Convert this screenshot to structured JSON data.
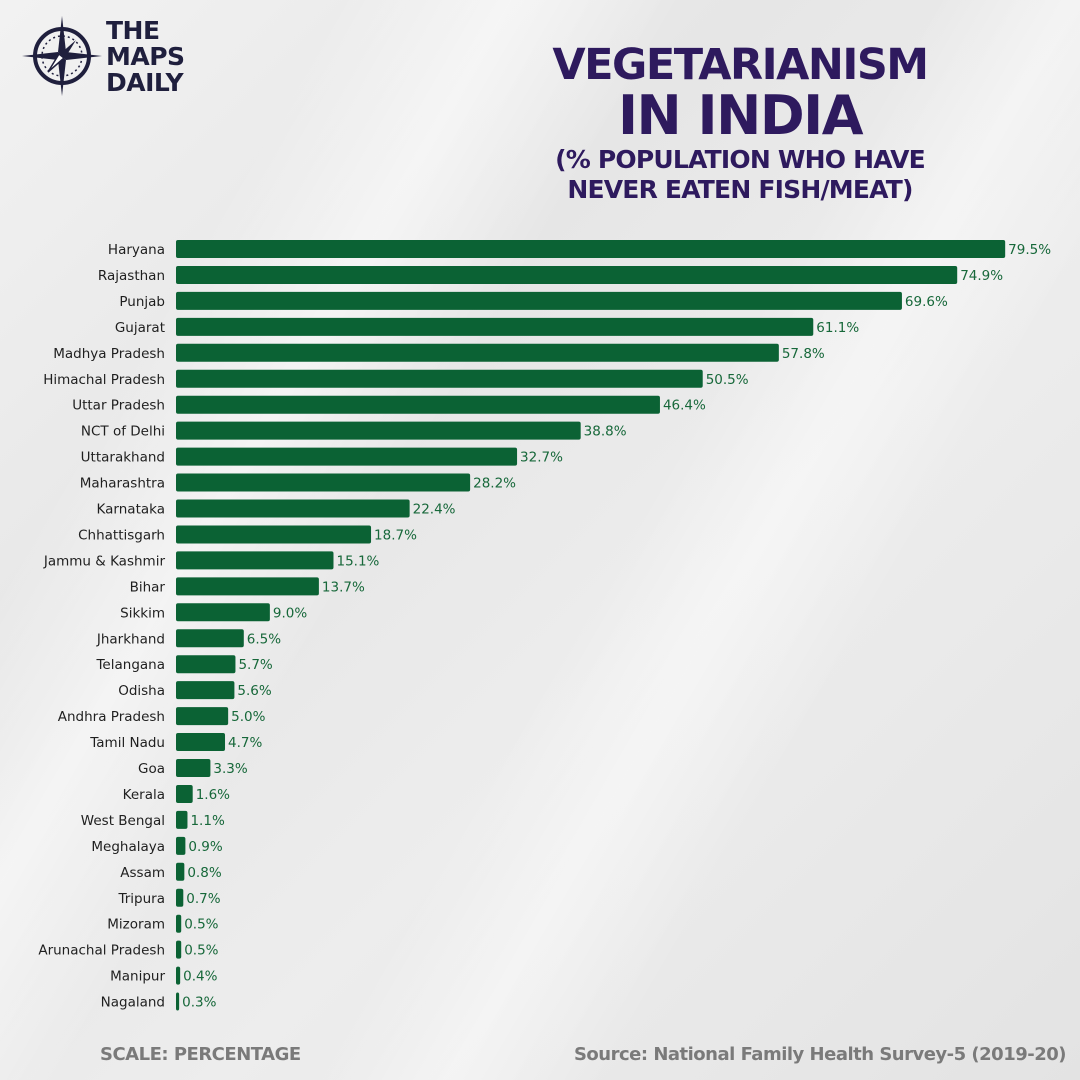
{
  "brand": {
    "lines": [
      "THE",
      "MAPS",
      "DAILY"
    ]
  },
  "header": {
    "title_line1": "VEGETARIANISM",
    "title_line2": "IN INDIA",
    "subtitle_line1": "(% POPULATION WHO HAVE",
    "subtitle_line2": "NEVER EATEN FISH/MEAT)"
  },
  "footer": {
    "scale": "SCALE: PERCENTAGE",
    "source": "Source: National Family Health Survey-5 (2019-20)"
  },
  "colors": {
    "bar": "#0b6234",
    "value_text": "#17683a",
    "title": "#2e1a5e",
    "brand": "#1f1f3d",
    "footer": "#7a7a7a"
  },
  "chart_data": {
    "type": "bar",
    "orientation": "horizontal",
    "title": "VEGETARIANISM IN INDIA",
    "subtitle": "(% POPULATION WHO HAVE NEVER EATEN FISH/MEAT)",
    "xlabel": "",
    "ylabel": "",
    "xlim": [
      0,
      80
    ],
    "grid": false,
    "categories": [
      "Haryana",
      "Rajasthan",
      "Punjab",
      "Gujarat",
      "Madhya Pradesh",
      "Himachal Pradesh",
      "Uttar Pradesh",
      "NCT of Delhi",
      "Uttarakhand",
      "Maharashtra",
      "Karnataka",
      "Chhattisgarh",
      "Jammu & Kashmir",
      "Bihar",
      "Sikkim",
      "Jharkhand",
      "Telangana",
      "Odisha",
      "Andhra Pradesh",
      "Tamil Nadu",
      "Goa",
      "Kerala",
      "West Bengal",
      "Meghalaya",
      "Assam",
      "Tripura",
      "Mizoram",
      "Arunachal Pradesh",
      "Manipur",
      "Nagaland"
    ],
    "values": [
      79.5,
      74.9,
      69.6,
      61.1,
      57.8,
      50.5,
      46.4,
      38.8,
      32.7,
      28.2,
      22.4,
      18.7,
      15.1,
      13.7,
      9.0,
      6.5,
      5.7,
      5.6,
      5.0,
      4.7,
      3.3,
      1.6,
      1.1,
      0.9,
      0.8,
      0.7,
      0.5,
      0.5,
      0.4,
      0.3
    ],
    "value_labels": [
      "79.5%",
      "74.9%",
      "69.6%",
      "61.1%",
      "57.8%",
      "50.5%",
      "46.4%",
      "38.8%",
      "32.7%",
      "28.2%",
      "22.4%",
      "18.7%",
      "15.1%",
      "13.7%",
      "9.0%",
      "6.5%",
      "5.7%",
      "5.6%",
      "5.0%",
      "4.7%",
      "3.3%",
      "1.6%",
      "1.1%",
      "0.9%",
      "0.8%",
      "0.7%",
      "0.5%",
      "0.5%",
      "0.4%",
      "0.3%"
    ]
  }
}
